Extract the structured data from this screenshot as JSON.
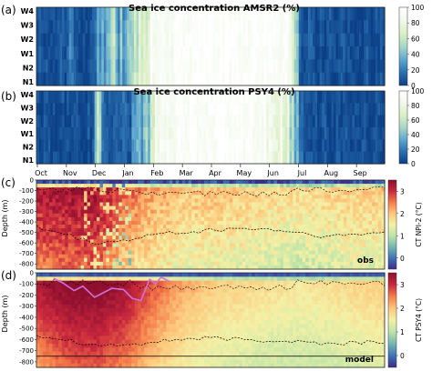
{
  "colors": {
    "ice_ramp": [
      "#0b3f86",
      "#2a6fb0",
      "#5fa9d1",
      "#a9d8c6",
      "#dcefc4",
      "#f2f9ec",
      "#ffffff"
    ],
    "temp_ramp": [
      "#3a2d8c",
      "#3f74b6",
      "#73b7b1",
      "#bfe4a8",
      "#f3f1a6",
      "#fdc77b",
      "#f47d4a",
      "#c9283d",
      "#8e0f2f"
    ],
    "mld_line": "#cf71d8",
    "contour": "#000000"
  },
  "chart_data": [
    {
      "type": "heatmap",
      "panel_label": "(a)",
      "title": "Sea ice concentration AMSR2 (%)",
      "y_tick_labels": [
        "W4",
        "W3",
        "W2",
        "W1",
        "N2",
        "N1"
      ],
      "colorbar": {
        "ticks": [
          0,
          20,
          40,
          60,
          80,
          100
        ],
        "range": [
          0,
          100
        ]
      },
      "months": [
        "Oct",
        "Nov",
        "Dec",
        "Jan",
        "Feb",
        "Mar",
        "Apr",
        "May",
        "Jun",
        "Jul",
        "Aug",
        "Sep"
      ],
      "ice_profile": [
        [
          0,
          0.08
        ],
        [
          1,
          0.08
        ],
        [
          1.2,
          0.3
        ],
        [
          1.4,
          0.1
        ],
        [
          1.6,
          0.05
        ],
        [
          2.0,
          0.1
        ],
        [
          2.3,
          0.4
        ],
        [
          2.6,
          0.6
        ],
        [
          2.8,
          0.3
        ],
        [
          3.0,
          0.35
        ],
        [
          3.3,
          0.5
        ],
        [
          3.6,
          0.7
        ],
        [
          3.8,
          0.8
        ],
        [
          4.0,
          0.9
        ],
        [
          4.2,
          0.95
        ],
        [
          4.5,
          0.9
        ],
        [
          4.8,
          0.95
        ],
        [
          5.0,
          0.98
        ],
        [
          6.0,
          0.98
        ],
        [
          7.0,
          0.97
        ],
        [
          8.0,
          0.96
        ],
        [
          8.6,
          0.92
        ],
        [
          8.8,
          0.55
        ],
        [
          9.0,
          0.3
        ],
        [
          9.2,
          0.08
        ],
        [
          10,
          0.05
        ],
        [
          12,
          0.05
        ]
      ]
    },
    {
      "type": "heatmap",
      "panel_label": "(b)",
      "title": "Sea ice concentration PSY4 (%)",
      "y_tick_labels": [
        "W4",
        "W3",
        "W2",
        "W1",
        "N2",
        "N1"
      ],
      "colorbar": {
        "ticks": [
          0,
          20,
          40,
          60,
          80,
          100
        ],
        "range": [
          0,
          100
        ]
      },
      "months": [
        "Oct",
        "Nov",
        "Dec",
        "Jan",
        "Feb",
        "Mar",
        "Apr",
        "May",
        "Jun",
        "Jul",
        "Aug",
        "Sep"
      ],
      "ice_profile": [
        [
          0,
          0.05
        ],
        [
          1.9,
          0.05
        ],
        [
          2.1,
          0.65
        ],
        [
          2.3,
          0.15
        ],
        [
          2.6,
          0.1
        ],
        [
          3.0,
          0.15
        ],
        [
          3.4,
          0.25
        ],
        [
          3.8,
          0.45
        ],
        [
          4.0,
          0.7
        ],
        [
          4.3,
          0.85
        ],
        [
          4.6,
          0.9
        ],
        [
          5.0,
          0.95
        ],
        [
          7.0,
          0.97
        ],
        [
          8.3,
          0.85
        ],
        [
          8.8,
          0.6
        ],
        [
          9.0,
          0.15
        ],
        [
          9.3,
          0.05
        ],
        [
          12,
          0.05
        ]
      ]
    },
    {
      "type": "heatmap",
      "panel_label": "(c)",
      "ylabel": "Depth (m)",
      "ylim": [
        -850,
        0
      ],
      "y_ticks": [
        -800,
        -700,
        -600,
        -500,
        -400,
        -300,
        -200,
        -100,
        0
      ],
      "colorbar": {
        "label": "CT NPI-2 (°C)",
        "ticks": [
          0,
          1,
          2,
          3
        ],
        "range": [
          -0.5,
          3.5
        ]
      },
      "corner_label": "obs",
      "temperature_fields": [
        [
          0,
          2.9,
          2.4
        ],
        [
          1,
          3.0,
          2.6
        ],
        [
          2,
          3.0,
          2.7
        ],
        [
          3,
          2.4,
          1.8
        ],
        [
          4,
          1.9,
          1.6
        ],
        [
          5,
          1.6,
          1.4
        ],
        [
          6,
          1.7,
          1.4
        ],
        [
          7,
          1.6,
          1.3
        ],
        [
          8,
          1.5,
          1.2
        ],
        [
          9,
          1.4,
          1.1
        ],
        [
          10,
          1.5,
          1.2
        ],
        [
          11,
          1.6,
          1.3
        ],
        [
          12,
          1.6,
          1.3
        ]
      ],
      "contour_depths": [
        [
          0,
          -450
        ],
        [
          1,
          -520
        ],
        [
          2,
          -600
        ],
        [
          3,
          -580
        ],
        [
          4,
          -520
        ],
        [
          5,
          -500
        ],
        [
          6,
          -480
        ],
        [
          7,
          -460
        ],
        [
          8,
          -470
        ],
        [
          9,
          -500
        ],
        [
          10,
          -540
        ],
        [
          11,
          -520
        ],
        [
          12,
          -500
        ]
      ]
    },
    {
      "type": "heatmap",
      "panel_label": "(d)",
      "ylabel": "Depth (m)",
      "ylim": [
        -850,
        0
      ],
      "y_ticks": [
        -800,
        -700,
        -600,
        -500,
        -400,
        -300,
        -200,
        -100,
        0
      ],
      "colorbar": {
        "label": "CT PSY4 (°C)",
        "ticks": [
          0,
          1,
          2,
          3
        ],
        "range": [
          -0.5,
          3.5
        ]
      },
      "corner_label": "model",
      "x_ticks": [
        "Oct",
        "Nov",
        "Dec",
        "Jan",
        "Feb",
        "Mar",
        "Apr",
        "May",
        "Jun",
        "Jul",
        "Aug",
        "Sep"
      ],
      "temperature_fields": [
        [
          0,
          3.0,
          2.2
        ],
        [
          1,
          3.3,
          2.6
        ],
        [
          2,
          3.3,
          2.7
        ],
        [
          3,
          3.1,
          2.4
        ],
        [
          4,
          2.4,
          1.9
        ],
        [
          5,
          1.9,
          1.5
        ],
        [
          6,
          1.6,
          1.3
        ],
        [
          7,
          1.5,
          1.2
        ],
        [
          8,
          1.4,
          1.1
        ],
        [
          9,
          1.3,
          1.1
        ],
        [
          10,
          1.4,
          1.1
        ],
        [
          11,
          1.5,
          1.2
        ],
        [
          12,
          1.6,
          1.3
        ]
      ],
      "mld_depths": [
        [
          0.6,
          -50
        ],
        [
          0.9,
          -90
        ],
        [
          1.3,
          -160
        ],
        [
          1.6,
          -120
        ],
        [
          2.0,
          -220
        ],
        [
          2.3,
          -180
        ],
        [
          2.6,
          -140
        ],
        [
          3.0,
          -150
        ],
        [
          3.3,
          -230
        ],
        [
          3.6,
          -250
        ],
        [
          3.9,
          -60
        ],
        [
          4.1,
          -100
        ],
        [
          4.3,
          -40
        ],
        [
          4.6,
          -80
        ]
      ],
      "reference_depth": -750
    }
  ]
}
